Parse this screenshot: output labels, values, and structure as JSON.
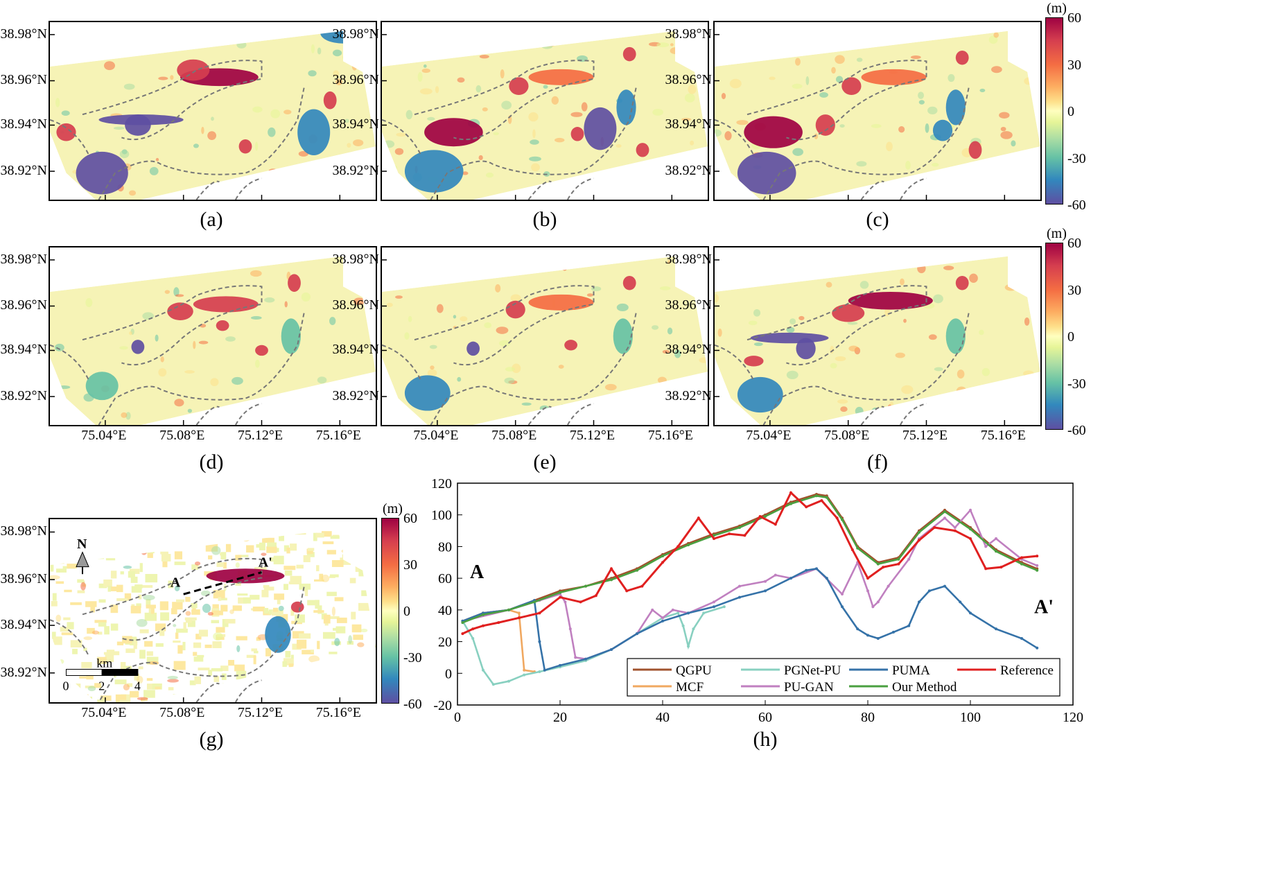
{
  "map_panels": [
    {
      "label": "(a)",
      "variant": "a"
    },
    {
      "label": "(b)",
      "variant": "b"
    },
    {
      "label": "(c)",
      "variant": "c"
    },
    {
      "label": "(d)",
      "variant": "d"
    },
    {
      "label": "(e)",
      "variant": "e"
    },
    {
      "label": "(f)",
      "variant": "f"
    },
    {
      "label": "(g)",
      "variant": "g"
    }
  ],
  "latitude_ticks": [
    "38.98°N",
    "38.96°N",
    "38.94°N",
    "38.92°N"
  ],
  "longitude_ticks": [
    "75.04°E",
    "75.08°E",
    "75.12°E",
    "75.16°E"
  ],
  "colorbar": {
    "unit": "(m)",
    "ticks": [
      "60",
      "30",
      "0",
      "-30",
      "-60"
    ],
    "colors": [
      "#9e0142",
      "#d53e4f",
      "#f46d43",
      "#fdae61",
      "#fee08b",
      "#ffffbf",
      "#e6f598",
      "#abdda4",
      "#66c2a5",
      "#3288bd",
      "#5e4fa2"
    ]
  },
  "panel_g": {
    "north_label": "N",
    "scale_unit": "km",
    "scale_ticks": [
      "0",
      "2",
      "4"
    ],
    "profile_start": "A",
    "profile_end": "A'"
  },
  "chart_data": {
    "type": "line",
    "label": "(h)",
    "xlim": [
      0,
      120
    ],
    "ylim": [
      -20,
      120
    ],
    "xticks": [
      0,
      20,
      40,
      60,
      80,
      100,
      120
    ],
    "yticks": [
      -20,
      0,
      20,
      40,
      60,
      80,
      100,
      120
    ],
    "annotation_start": "A",
    "annotation_end": "A'",
    "series": [
      {
        "name": "QGPU",
        "color": "#a0522d",
        "x": [
          1,
          5,
          10,
          15,
          20,
          25,
          30,
          35,
          40,
          45,
          50,
          55,
          60,
          65,
          70,
          72,
          75,
          78,
          82,
          86,
          90,
          95,
          100,
          105,
          110,
          113
        ],
        "y": [
          33,
          38,
          40,
          46,
          52,
          55,
          60,
          66,
          75,
          82,
          88,
          93,
          100,
          108,
          113,
          112,
          98,
          80,
          70,
          73,
          90,
          103,
          92,
          78,
          70,
          66
        ]
      },
      {
        "name": "MCF",
        "color": "#f0a860",
        "x": [
          1,
          5,
          10,
          12,
          13,
          15
        ],
        "y": [
          33,
          38,
          40,
          38,
          2,
          1
        ]
      },
      {
        "name": "PGNet-PU",
        "color": "#88d0c0",
        "x": [
          1,
          3,
          5,
          7,
          10,
          13,
          16,
          20,
          25,
          30,
          35,
          40,
          43,
          44,
          45,
          46,
          48,
          52
        ],
        "y": [
          33,
          22,
          2,
          -7,
          -5,
          -1,
          1,
          4,
          8,
          15,
          25,
          35,
          38,
          30,
          17,
          28,
          38,
          42
        ]
      },
      {
        "name": "PU-GAN",
        "color": "#c080c0",
        "x": [
          1,
          10,
          16,
          20,
          21,
          22,
          23,
          25,
          30,
          35,
          38,
          40,
          42,
          45,
          50,
          55,
          60,
          62,
          65,
          70,
          75,
          78,
          80,
          81,
          82,
          84,
          88,
          90,
          95,
          97,
          100,
          103,
          105,
          110,
          113
        ],
        "y": [
          33,
          40,
          46,
          50,
          45,
          28,
          10,
          9,
          15,
          25,
          40,
          35,
          40,
          38,
          45,
          55,
          58,
          62,
          60,
          66,
          50,
          70,
          52,
          42,
          45,
          55,
          72,
          85,
          98,
          92,
          103,
          80,
          85,
          72,
          68
        ]
      },
      {
        "name": "PUMA",
        "color": "#3572a8",
        "x": [
          1,
          5,
          10,
          15,
          16,
          17,
          20,
          25,
          30,
          35,
          40,
          45,
          50,
          55,
          60,
          65,
          68,
          70,
          72,
          75,
          78,
          80,
          82,
          85,
          88,
          90,
          92,
          95,
          98,
          100,
          105,
          110,
          113
        ],
        "y": [
          33,
          38,
          40,
          46,
          20,
          2,
          5,
          9,
          15,
          25,
          33,
          38,
          42,
          48,
          52,
          60,
          65,
          66,
          60,
          42,
          28,
          24,
          22,
          26,
          30,
          45,
          52,
          55,
          45,
          38,
          28,
          22,
          16
        ]
      },
      {
        "name": "Our Method",
        "color": "#4aa040",
        "x": [
          1,
          5,
          10,
          15,
          20,
          25,
          30,
          35,
          40,
          45,
          50,
          55,
          60,
          65,
          70,
          72,
          75,
          78,
          82,
          86,
          90,
          95,
          100,
          105,
          110,
          113
        ],
        "y": [
          32,
          37,
          40,
          45,
          51,
          55,
          59,
          65,
          74,
          81,
          87,
          92,
          99,
          107,
          112,
          111,
          97,
          79,
          69,
          72,
          89,
          102,
          91,
          77,
          69,
          65
        ]
      },
      {
        "name": "Reference",
        "color": "#e02020",
        "x": [
          1,
          3,
          5,
          8,
          12,
          16,
          20,
          24,
          27,
          30,
          33,
          36,
          40,
          43,
          47,
          50,
          53,
          56,
          59,
          62,
          65,
          68,
          71,
          74,
          77,
          80,
          83,
          86,
          90,
          93,
          97,
          100,
          103,
          106,
          110,
          113
        ],
        "y": [
          25,
          28,
          30,
          32,
          35,
          38,
          48,
          45,
          49,
          66,
          52,
          55,
          70,
          80,
          98,
          85,
          88,
          87,
          99,
          94,
          114,
          105,
          109,
          98,
          78,
          60,
          67,
          69,
          84,
          92,
          90,
          85,
          66,
          67,
          73,
          74
        ]
      }
    ]
  }
}
